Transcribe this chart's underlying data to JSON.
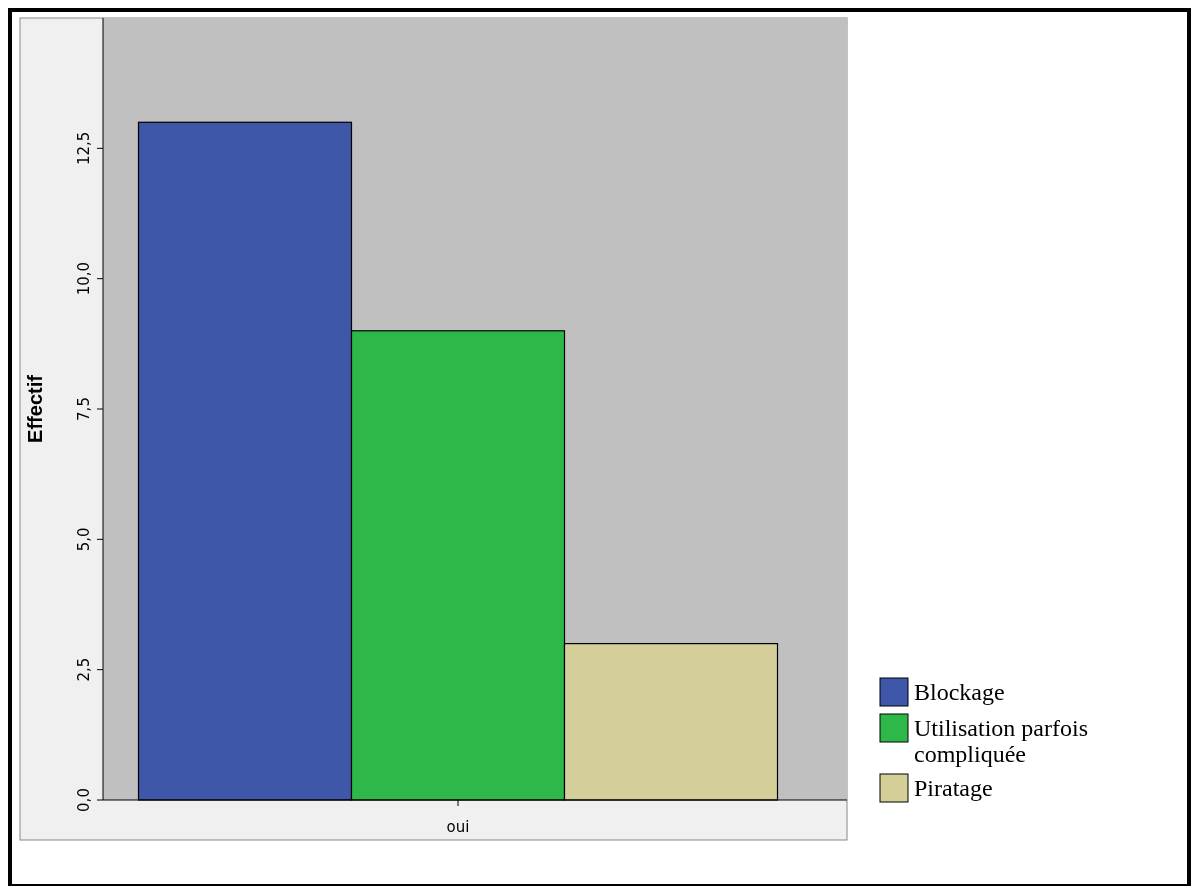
{
  "chart_data": {
    "type": "bar",
    "ylabel": "Effectif",
    "categories": [
      "oui"
    ],
    "series": [
      {
        "name": "Blockage",
        "color": "#3e57a8",
        "values": [
          13
        ]
      },
      {
        "name": "Utilisation parfois compliquée",
        "color": "#2eb84a",
        "values": [
          9
        ]
      },
      {
        "name": "Piratage",
        "color": "#d4cf98",
        "values": [
          3
        ]
      }
    ],
    "ylim": [
      0,
      15
    ],
    "yticks": [
      {
        "value": 0,
        "label": "0,0"
      },
      {
        "value": 2.5,
        "label": "2,5"
      },
      {
        "value": 5,
        "label": "5,0"
      },
      {
        "value": 7.5,
        "label": "7,5"
      },
      {
        "value": 10,
        "label": "10,0"
      },
      {
        "value": 12.5,
        "label": "12,5"
      }
    ],
    "grid": false,
    "legend": "bottom right"
  }
}
